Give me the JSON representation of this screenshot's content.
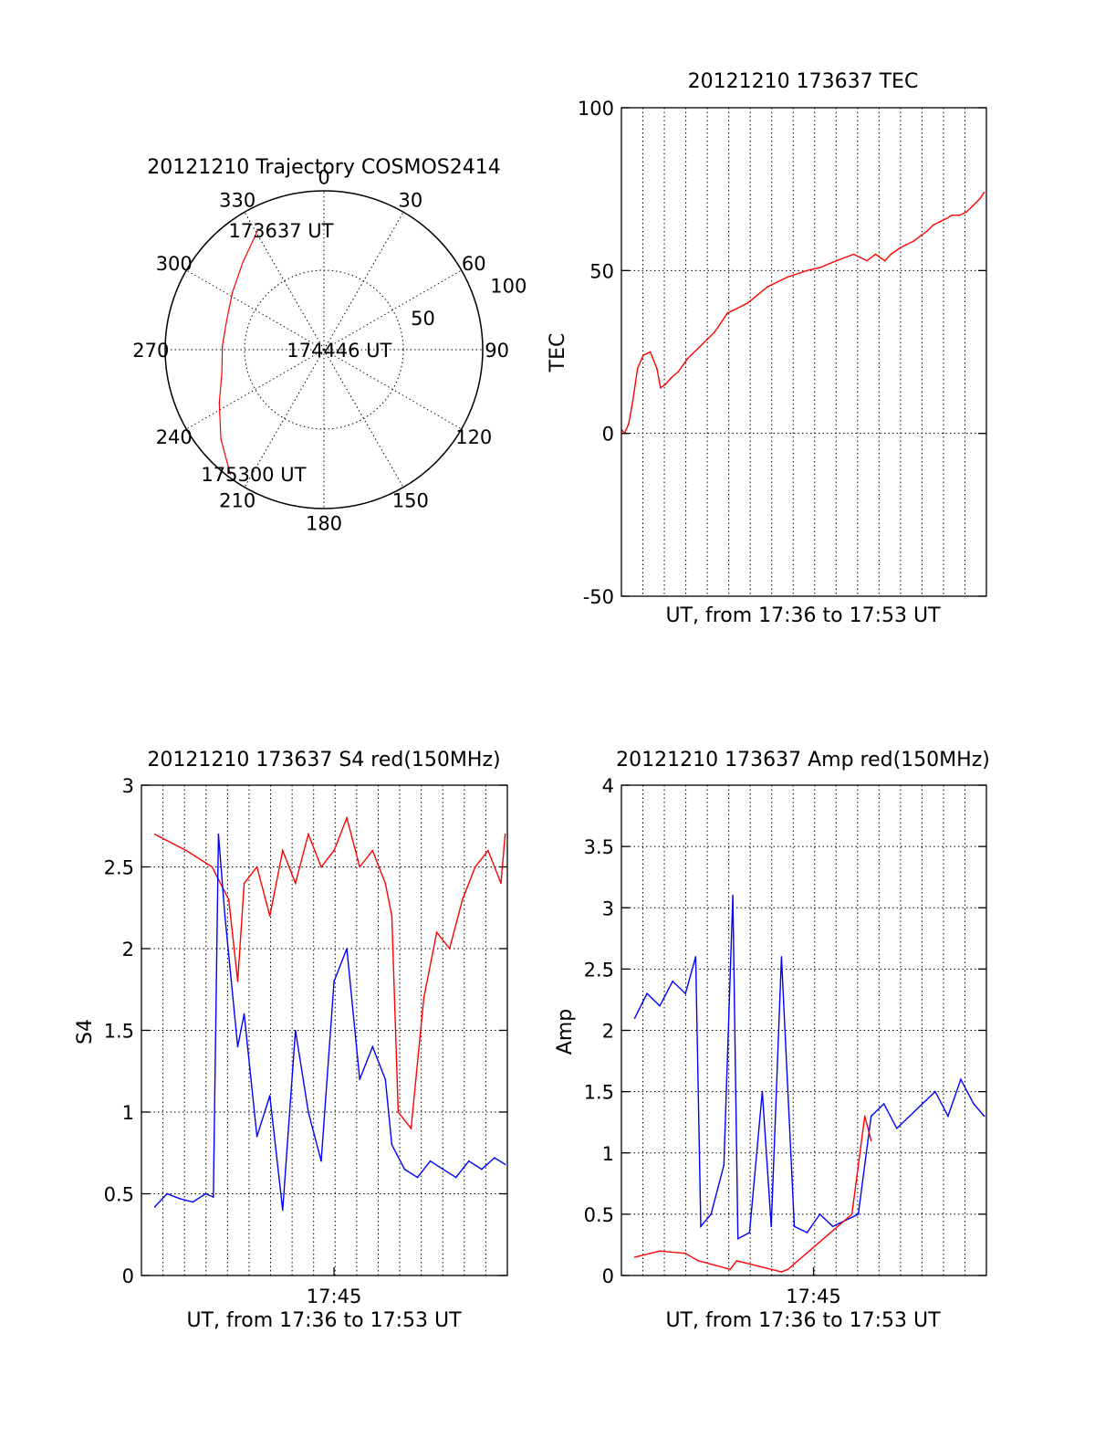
{
  "colors": {
    "red": "#ff0000",
    "blue": "#0000ff",
    "axis": "#000000",
    "background": "#ffffff"
  },
  "chart_data": [
    {
      "id": "trajectory",
      "type": "polar",
      "title": "20121210 Trajectory COSMOS2414",
      "angle_labels": [
        "0",
        "30",
        "60",
        "90",
        "120",
        "150",
        "180",
        "210",
        "240",
        "270",
        "300",
        "330"
      ],
      "angle_values": [
        0,
        30,
        60,
        90,
        120,
        150,
        180,
        210,
        240,
        270,
        300,
        330
      ],
      "radial_tick_labels": [
        "50",
        "100"
      ],
      "radial_ticks": [
        50,
        100
      ],
      "rlim": [
        0,
        100
      ],
      "grid": true,
      "series": [
        {
          "color": "red",
          "points": [
            {
              "az": 331,
              "r": 86
            },
            {
              "az": 317,
              "r": 75
            },
            {
              "az": 302,
              "r": 68
            },
            {
              "az": 287,
              "r": 64
            },
            {
              "az": 272,
              "r": 64
            },
            {
              "az": 257,
              "r": 66
            },
            {
              "az": 243,
              "r": 74
            },
            {
              "az": 229,
              "r": 86
            },
            {
              "az": 217,
              "r": 98
            }
          ]
        }
      ],
      "annotations": [
        {
          "text": "173637 UT",
          "az": 331,
          "r": 86
        },
        {
          "text": "174446 UT",
          "az": 271,
          "r": 5
        },
        {
          "text": "175300 UT",
          "az": 217,
          "r": 98
        }
      ]
    },
    {
      "id": "tec",
      "type": "line",
      "title": "20121210 173637 TEC",
      "xlabel": "UT, from 17:36 to 17:53 UT",
      "ylabel": "TEC",
      "ylim": [
        -50,
        100
      ],
      "yticks": [
        -50,
        0,
        50,
        100
      ],
      "ytick_labels": [
        "-50",
        "0",
        "50",
        "100"
      ],
      "xlim": [
        17.61,
        17.885
      ],
      "xticks": [],
      "grid": true,
      "series": [
        {
          "color": "red",
          "x": [
            17.6104,
            17.6125,
            17.6155,
            17.6186,
            17.6222,
            17.6265,
            17.6317,
            17.6367,
            17.6395,
            17.643,
            17.6475,
            17.653,
            17.66,
            17.67,
            17.68,
            17.69,
            17.6953,
            17.705,
            17.72,
            17.735,
            17.75,
            17.76,
            17.772,
            17.785,
            17.795,
            17.8015,
            17.8085,
            17.813,
            17.82,
            17.825,
            17.83,
            17.84,
            17.845,
            17.85,
            17.855,
            17.859,
            17.865,
            17.87,
            17.875,
            17.88,
            17.8833
          ],
          "y": [
            1,
            0,
            3,
            10,
            20,
            24,
            25,
            20,
            14,
            15,
            17,
            19,
            23,
            27,
            31,
            37,
            38,
            40,
            45,
            48,
            50,
            51,
            53,
            55,
            53,
            55,
            53,
            55,
            57,
            58,
            59,
            62,
            64,
            65,
            66,
            67,
            67,
            68,
            70,
            72,
            74
          ]
        }
      ]
    },
    {
      "id": "s4",
      "type": "line",
      "title": "20121210 173637 S4 red(150MHz)",
      "xlabel": "UT, from 17:36 to 17:53 UT",
      "ylabel": "S4",
      "ylim": [
        0,
        3
      ],
      "yticks": [
        0,
        0.5,
        1,
        1.5,
        2,
        2.5,
        3
      ],
      "ytick_labels": [
        "0",
        "0.5",
        "1",
        "1.5",
        "2",
        "2.5",
        "3"
      ],
      "xlim": [
        17.6,
        17.885
      ],
      "xticks": [
        17.75
      ],
      "xtick_labels": [
        "17:45"
      ],
      "grid": true,
      "series": [
        {
          "color": "red",
          "x": [
            17.6104,
            17.635,
            17.655,
            17.668,
            17.675,
            17.68,
            17.69,
            17.7,
            17.71,
            17.72,
            17.73,
            17.74,
            17.75,
            17.76,
            17.77,
            17.78,
            17.79,
            17.795,
            17.8,
            17.81,
            17.82,
            17.83,
            17.84,
            17.85,
            17.86,
            17.87,
            17.88,
            17.8833
          ],
          "y": [
            2.7,
            2.6,
            2.5,
            2.3,
            1.8,
            2.4,
            2.5,
            2.2,
            2.6,
            2.4,
            2.7,
            2.5,
            2.6,
            2.8,
            2.5,
            2.6,
            2.4,
            2.2,
            1.0,
            0.9,
            1.7,
            2.1,
            2.0,
            2.3,
            2.5,
            2.6,
            2.4,
            2.7
          ]
        },
        {
          "color": "blue",
          "x": [
            17.6104,
            17.62,
            17.63,
            17.64,
            17.65,
            17.656,
            17.66,
            17.665,
            17.67,
            17.675,
            17.68,
            17.69,
            17.7,
            17.71,
            17.72,
            17.73,
            17.74,
            17.75,
            17.76,
            17.77,
            17.78,
            17.79,
            17.795,
            17.805,
            17.815,
            17.825,
            17.835,
            17.845,
            17.855,
            17.865,
            17.875,
            17.8833
          ],
          "y": [
            0.42,
            0.5,
            0.47,
            0.45,
            0.5,
            0.48,
            2.7,
            2.2,
            1.8,
            1.4,
            1.6,
            0.85,
            1.1,
            0.4,
            1.5,
            1.0,
            0.7,
            1.8,
            2.0,
            1.2,
            1.4,
            1.2,
            0.8,
            0.65,
            0.6,
            0.7,
            0.65,
            0.6,
            0.7,
            0.65,
            0.72,
            0.68
          ]
        }
      ]
    },
    {
      "id": "amp",
      "type": "line",
      "title": "20121210 173637 Amp red(150MHz)",
      "xlabel": "UT, from 17:36 to 17:53 UT",
      "ylabel": "Amp",
      "ylim": [
        0,
        4
      ],
      "yticks": [
        0,
        0.5,
        1,
        1.5,
        2,
        2.5,
        3,
        3.5,
        4
      ],
      "ytick_labels": [
        "0",
        "0.5",
        "1",
        "1.5",
        "2",
        "2.5",
        "3",
        "3.5",
        "4"
      ],
      "xlim": [
        17.6,
        17.885
      ],
      "xticks": [
        17.75
      ],
      "xtick_labels": [
        "17:45"
      ],
      "grid": true,
      "series": [
        {
          "color": "blue",
          "x": [
            17.6104,
            17.62,
            17.63,
            17.64,
            17.65,
            17.658,
            17.662,
            17.67,
            17.68,
            17.687,
            17.691,
            17.7,
            17.71,
            17.717,
            17.725,
            17.735,
            17.745,
            17.755,
            17.765,
            17.775,
            17.785,
            17.795,
            17.805,
            17.815,
            17.825,
            17.835,
            17.845,
            17.855,
            17.865,
            17.875,
            17.8833
          ],
          "y": [
            2.1,
            2.3,
            2.2,
            2.4,
            2.3,
            2.6,
            0.4,
            0.5,
            0.9,
            3.1,
            0.3,
            0.35,
            1.5,
            0.4,
            2.6,
            0.4,
            0.35,
            0.5,
            0.4,
            0.45,
            0.5,
            1.3,
            1.4,
            1.2,
            1.3,
            1.4,
            1.5,
            1.3,
            1.6,
            1.4,
            1.3
          ]
        },
        {
          "color": "red",
          "x": [
            17.6104,
            17.63,
            17.65,
            17.66,
            17.685,
            17.69,
            17.725,
            17.73,
            17.78,
            17.79,
            17.795
          ],
          "y": [
            0.15,
            0.2,
            0.18,
            0.12,
            0.05,
            0.12,
            0.03,
            0.05,
            0.5,
            1.3,
            1.1
          ]
        }
      ]
    }
  ]
}
